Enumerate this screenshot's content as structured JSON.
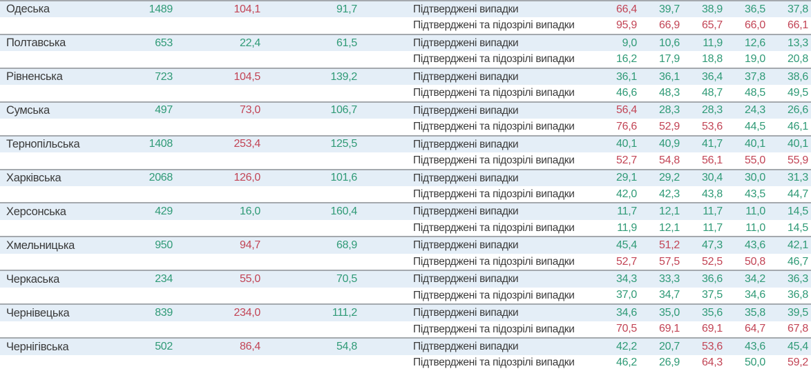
{
  "colors": {
    "positive_green": "#2f9a76",
    "negative_red": "#c24455",
    "row_highlight_blue": "#e4eef7",
    "row_white": "#ffffff",
    "separator_gray": "#a4a9ae",
    "text_dark": "#3a3a3a"
  },
  "labels": {
    "confirmed": "Підтверджені випадки",
    "confirmed_suspected": "Підтверджені та підозрілі випадки"
  },
  "value_colors": {
    "g": "#2f9a76",
    "r": "#c24455"
  },
  "rows": [
    {
      "region": "Одеська",
      "cases": "1489",
      "incidence": "104,1",
      "dynamics": "91,7",
      "cases_color": "g",
      "incidence_color": "r",
      "dynamics_color": "g",
      "confirmed": {
        "values": [
          "66,4",
          "39,7",
          "38,9",
          "36,5",
          "37,8"
        ],
        "colors": [
          "r",
          "g",
          "g",
          "g",
          "g"
        ]
      },
      "confirmed_suspected": {
        "values": [
          "95,9",
          "66,9",
          "65,7",
          "66,0",
          "66,1"
        ],
        "colors": [
          "r",
          "r",
          "r",
          "r",
          "r"
        ]
      }
    },
    {
      "region": "Полтавська",
      "cases": "653",
      "incidence": "22,4",
      "dynamics": "61,5",
      "cases_color": "g",
      "incidence_color": "g",
      "dynamics_color": "g",
      "confirmed": {
        "values": [
          "9,0",
          "10,6",
          "11,9",
          "12,6",
          "13,3"
        ],
        "colors": [
          "g",
          "g",
          "g",
          "g",
          "g"
        ]
      },
      "confirmed_suspected": {
        "values": [
          "16,2",
          "17,9",
          "18,8",
          "19,0",
          "20,8"
        ],
        "colors": [
          "g",
          "g",
          "g",
          "g",
          "g"
        ]
      }
    },
    {
      "region": "Рівненська",
      "cases": "723",
      "incidence": "104,5",
      "dynamics": "139,2",
      "cases_color": "g",
      "incidence_color": "r",
      "dynamics_color": "g",
      "confirmed": {
        "values": [
          "36,1",
          "36,1",
          "36,4",
          "37,8",
          "38,6"
        ],
        "colors": [
          "g",
          "g",
          "g",
          "g",
          "g"
        ]
      },
      "confirmed_suspected": {
        "values": [
          "46,6",
          "48,3",
          "48,7",
          "48,5",
          "49,5"
        ],
        "colors": [
          "g",
          "g",
          "g",
          "g",
          "g"
        ]
      }
    },
    {
      "region": "Сумська",
      "cases": "497",
      "incidence": "73,0",
      "dynamics": "106,7",
      "cases_color": "g",
      "incidence_color": "r",
      "dynamics_color": "g",
      "confirmed": {
        "values": [
          "56,4",
          "28,3",
          "28,3",
          "24,3",
          "26,6"
        ],
        "colors": [
          "r",
          "g",
          "g",
          "g",
          "g"
        ]
      },
      "confirmed_suspected": {
        "values": [
          "76,6",
          "52,9",
          "53,6",
          "44,5",
          "46,1"
        ],
        "colors": [
          "r",
          "r",
          "r",
          "g",
          "g"
        ]
      }
    },
    {
      "region": "Тернопільська",
      "cases": "1408",
      "incidence": "253,4",
      "dynamics": "125,5",
      "cases_color": "g",
      "incidence_color": "r",
      "dynamics_color": "g",
      "confirmed": {
        "values": [
          "40,1",
          "40,9",
          "41,7",
          "40,1",
          "40,1"
        ],
        "colors": [
          "g",
          "g",
          "g",
          "g",
          "g"
        ]
      },
      "confirmed_suspected": {
        "values": [
          "52,7",
          "54,8",
          "56,1",
          "55,0",
          "55,9"
        ],
        "colors": [
          "r",
          "r",
          "r",
          "r",
          "r"
        ]
      }
    },
    {
      "region": "Харківська",
      "cases": "2068",
      "incidence": "126,0",
      "dynamics": "101,6",
      "cases_color": "g",
      "incidence_color": "r",
      "dynamics_color": "g",
      "confirmed": {
        "values": [
          "29,1",
          "29,2",
          "30,4",
          "30,0",
          "31,3"
        ],
        "colors": [
          "g",
          "g",
          "g",
          "g",
          "g"
        ]
      },
      "confirmed_suspected": {
        "values": [
          "42,0",
          "42,3",
          "43,8",
          "43,5",
          "44,7"
        ],
        "colors": [
          "g",
          "g",
          "g",
          "g",
          "g"
        ]
      }
    },
    {
      "region": "Херсонська",
      "cases": "429",
      "incidence": "16,0",
      "dynamics": "160,4",
      "cases_color": "g",
      "incidence_color": "g",
      "dynamics_color": "g",
      "confirmed": {
        "values": [
          "11,7",
          "12,1",
          "11,7",
          "11,0",
          "14,5"
        ],
        "colors": [
          "g",
          "g",
          "g",
          "g",
          "g"
        ]
      },
      "confirmed_suspected": {
        "values": [
          "11,9",
          "12,1",
          "11,7",
          "11,0",
          "14,5"
        ],
        "colors": [
          "g",
          "g",
          "g",
          "g",
          "g"
        ]
      }
    },
    {
      "region": "Хмельницька",
      "cases": "950",
      "incidence": "94,7",
      "dynamics": "68,9",
      "cases_color": "g",
      "incidence_color": "r",
      "dynamics_color": "g",
      "confirmed": {
        "values": [
          "45,4",
          "51,2",
          "47,3",
          "43,6",
          "42,1"
        ],
        "colors": [
          "g",
          "r",
          "g",
          "g",
          "g"
        ]
      },
      "confirmed_suspected": {
        "values": [
          "52,7",
          "57,5",
          "52,5",
          "50,8",
          "46,7"
        ],
        "colors": [
          "r",
          "r",
          "r",
          "r",
          "g"
        ]
      }
    },
    {
      "region": "Черкаська",
      "cases": "234",
      "incidence": "55,0",
      "dynamics": "70,5",
      "cases_color": "g",
      "incidence_color": "r",
      "dynamics_color": "g",
      "confirmed": {
        "values": [
          "34,3",
          "33,3",
          "36,6",
          "34,2",
          "36,3"
        ],
        "colors": [
          "g",
          "g",
          "g",
          "g",
          "g"
        ]
      },
      "confirmed_suspected": {
        "values": [
          "37,0",
          "34,7",
          "37,5",
          "34,6",
          "36,8"
        ],
        "colors": [
          "g",
          "g",
          "g",
          "g",
          "g"
        ]
      }
    },
    {
      "region": "Чернівецька",
      "cases": "839",
      "incidence": "234,0",
      "dynamics": "111,2",
      "cases_color": "g",
      "incidence_color": "r",
      "dynamics_color": "g",
      "confirmed": {
        "values": [
          "34,6",
          "35,0",
          "35,6",
          "35,8",
          "39,5"
        ],
        "colors": [
          "g",
          "g",
          "g",
          "g",
          "g"
        ]
      },
      "confirmed_suspected": {
        "values": [
          "70,5",
          "69,1",
          "69,1",
          "64,7",
          "67,8"
        ],
        "colors": [
          "r",
          "r",
          "r",
          "r",
          "r"
        ]
      }
    },
    {
      "region": "Чернігівська",
      "cases": "502",
      "incidence": "86,4",
      "dynamics": "54,8",
      "cases_color": "g",
      "incidence_color": "r",
      "dynamics_color": "g",
      "confirmed": {
        "values": [
          "42,2",
          "20,7",
          "53,6",
          "43,6",
          "45,4"
        ],
        "colors": [
          "g",
          "g",
          "r",
          "g",
          "g"
        ]
      },
      "confirmed_suspected": {
        "values": [
          "46,2",
          "26,9",
          "64,3",
          "50,0",
          "59,2"
        ],
        "colors": [
          "g",
          "g",
          "r",
          "g",
          "r"
        ]
      }
    }
  ]
}
